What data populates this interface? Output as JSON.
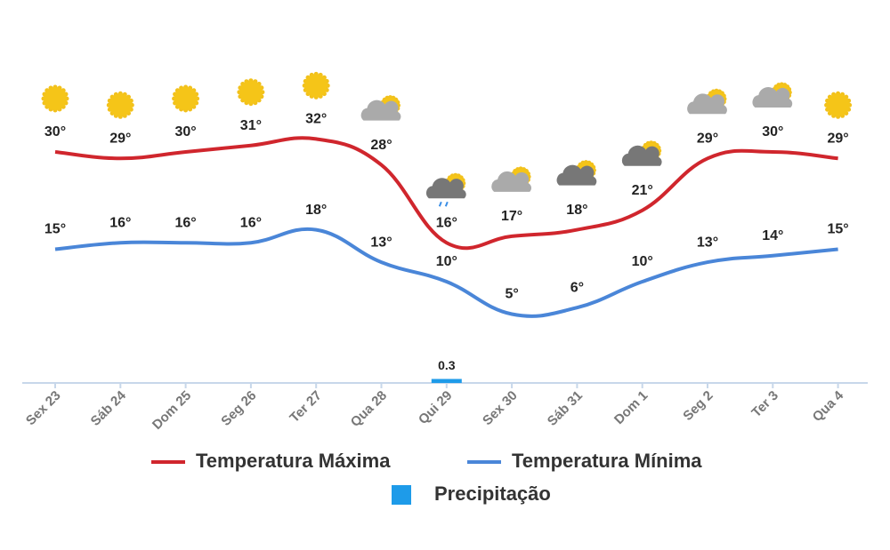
{
  "chart_data": {
    "type": "line",
    "categories": [
      "Sex 23",
      "Sáb 24",
      "Dom 25",
      "Seg 26",
      "Ter 27",
      "Qua 28",
      "Qui 29",
      "Sex 30",
      "Sáb 31",
      "Dom 1",
      "Seg 2",
      "Ter 3",
      "Qua 4"
    ],
    "series": [
      {
        "name": "Temperatura Máxima",
        "color": "#d0262d",
        "values": [
          30,
          29,
          30,
          31,
          32,
          28,
          16,
          17,
          18,
          21,
          29,
          30,
          29
        ],
        "value_labels": [
          "30°",
          "29°",
          "30°",
          "31°",
          "32°",
          "28°",
          "16°",
          "17°",
          "18°",
          "21°",
          "29°",
          "30°",
          "29°"
        ]
      },
      {
        "name": "Temperatura Mínima",
        "color": "#4a86d8",
        "values": [
          15,
          16,
          16,
          16,
          18,
          13,
          10,
          5,
          6,
          10,
          13,
          14,
          15
        ],
        "value_labels": [
          "15°",
          "16°",
          "16°",
          "16°",
          "18°",
          "13°",
          "10°",
          "5°",
          "6°",
          "10°",
          "13°",
          "14°",
          "15°"
        ]
      },
      {
        "name": "Precipitação",
        "type": "bar",
        "color": "#1e9be9",
        "values": [
          null,
          null,
          null,
          null,
          null,
          null,
          0.3,
          null,
          null,
          null,
          null,
          null,
          null
        ]
      }
    ]
  }
}
